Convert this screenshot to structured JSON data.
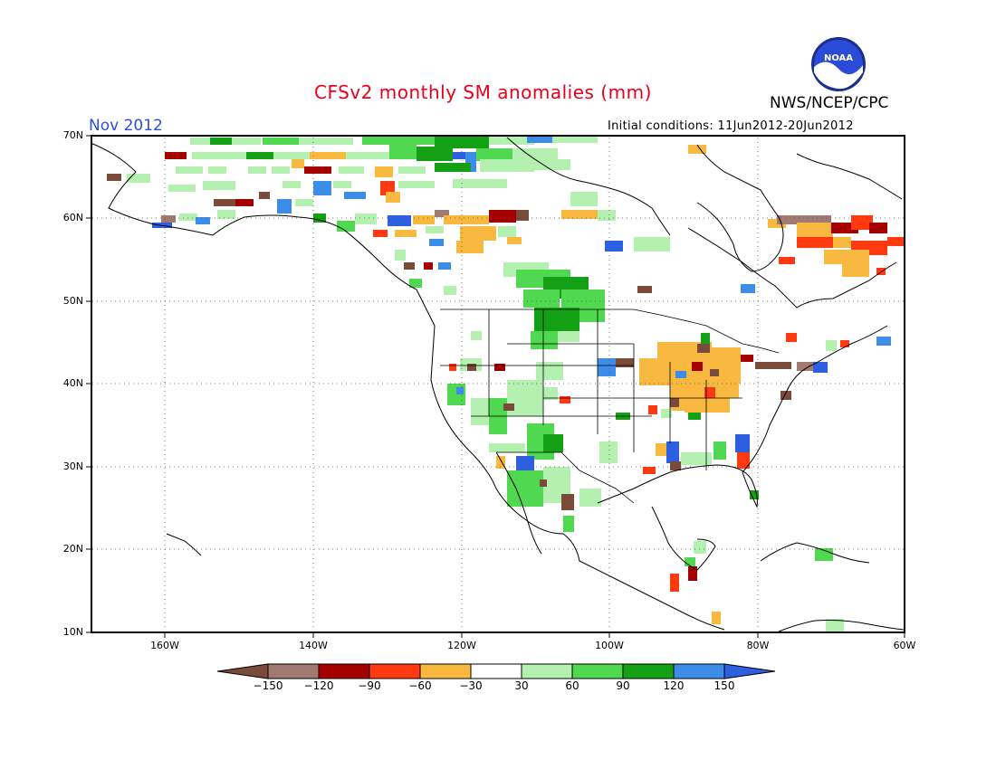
{
  "header": {
    "title": "CFSv2 monthly SM anomalies (mm)",
    "month": "Nov 2012",
    "initial_conditions": "Initial conditions: 11Jun2012-20Jun2012",
    "agency": "NWS/NCEP/CPC",
    "logo_text": "NOAA"
  },
  "axes": {
    "lat_labels": [
      "70N",
      "60N",
      "50N",
      "40N",
      "30N",
      "20N",
      "10N"
    ],
    "lon_labels": [
      "160W",
      "140W",
      "120W",
      "100W",
      "80W",
      "60W"
    ]
  },
  "colorbar": {
    "colors": [
      "#7a4a3a",
      "#a07a70",
      "#a40000",
      "#ff3a10",
      "#f9b840",
      "#ffffff",
      "#b4f0b0",
      "#50d850",
      "#14a014",
      "#3c8ce8",
      "#2c60e0"
    ],
    "labels": [
      "-150",
      "-120",
      "-90",
      "-60",
      "-30",
      "30",
      "60",
      "90",
      "120",
      "150"
    ]
  }
}
